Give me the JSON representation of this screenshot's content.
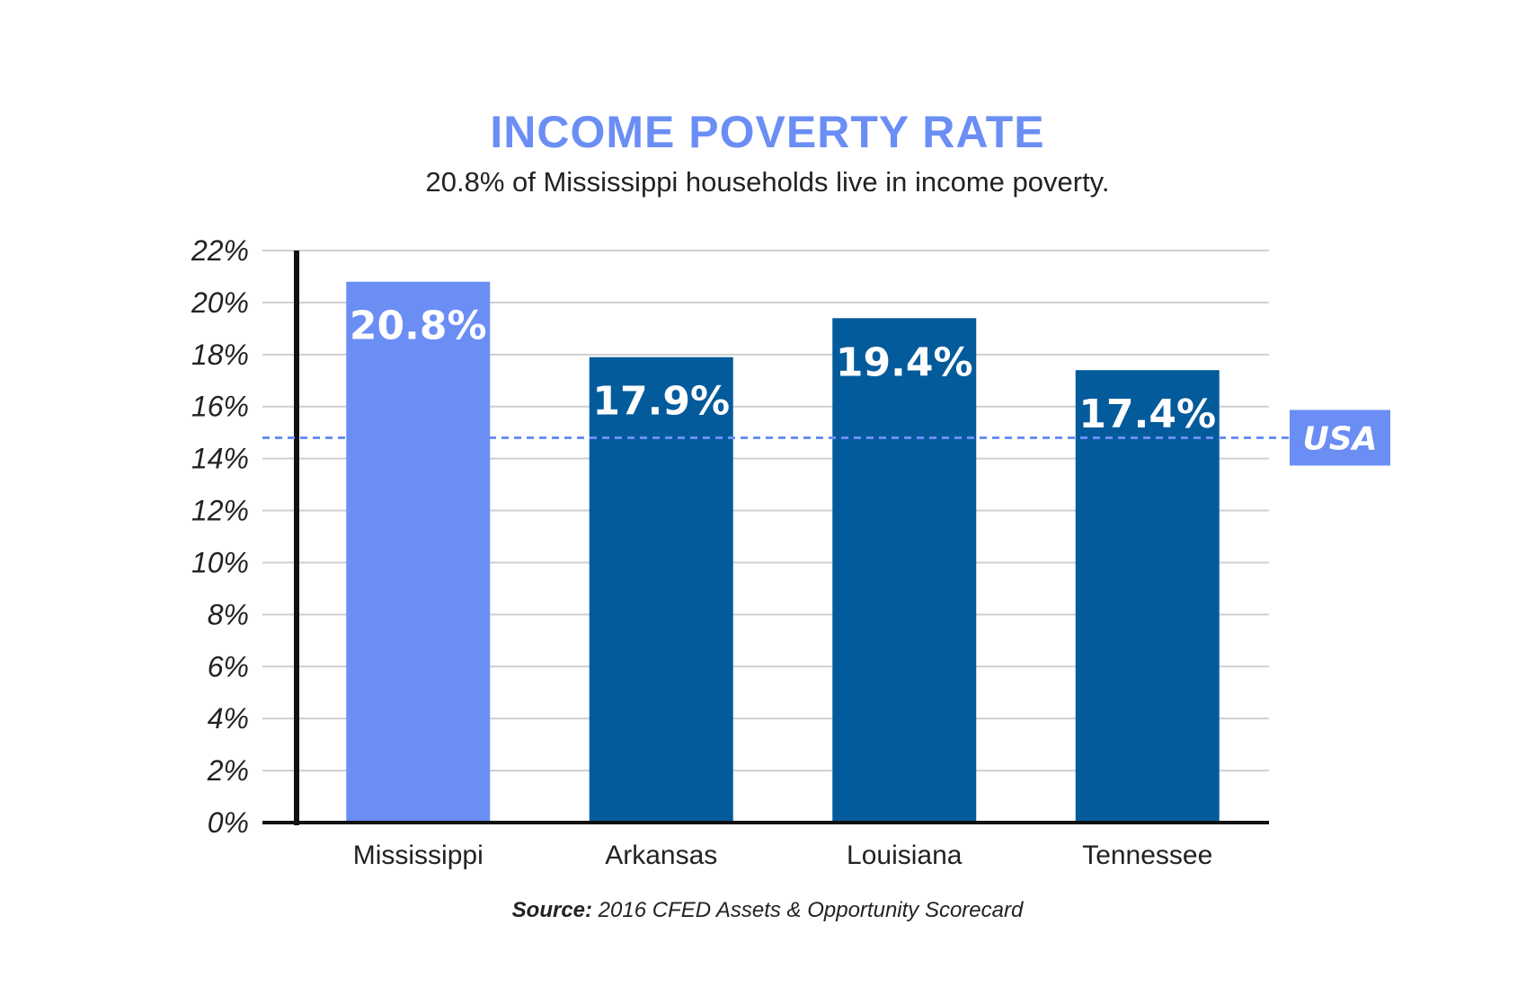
{
  "chart_data": {
    "type": "bar",
    "title": "INCOME POVERTY RATE",
    "subtitle": "20.8% of Mississippi households live in income poverty.",
    "categories": [
      "Mississippi",
      "Arkansas",
      "Louisiana",
      "Tennessee"
    ],
    "values": [
      20.8,
      17.9,
      19.4,
      17.4
    ],
    "value_labels": [
      "20.8%",
      "17.9%",
      "19.4%",
      "17.4%"
    ],
    "bar_colors": [
      "#6b8ef5",
      "#045b9b",
      "#045b9b",
      "#045b9b"
    ],
    "ylim": [
      0,
      22
    ],
    "yticks": [
      0,
      2,
      4,
      6,
      8,
      10,
      12,
      14,
      16,
      18,
      20,
      22
    ],
    "ytick_labels": [
      "0%",
      "2%",
      "4%",
      "6%",
      "8%",
      "10%",
      "12%",
      "14%",
      "16%",
      "18%",
      "20%",
      "22%"
    ],
    "xlabel": "",
    "ylabel": "",
    "grid": true,
    "reference_line": {
      "label": "USA",
      "value": 14.8,
      "color": "#6b8ef5",
      "style": "dashed"
    }
  },
  "source": {
    "prefix": "Source:",
    "text": " 2016 CFED Assets & Opportunity Scorecard"
  },
  "colors": {
    "title": "#6b8ef5",
    "grid": "#cfcfcf",
    "axis": "#111111"
  }
}
